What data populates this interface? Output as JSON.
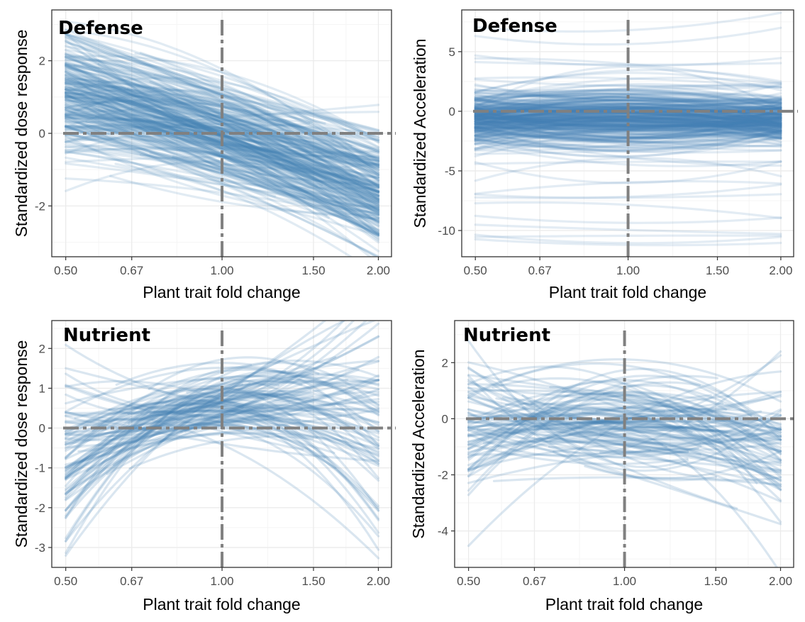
{
  "colors": {
    "curve": "#4682b4",
    "reference": "#808080",
    "grid_major": "#ebebeb",
    "grid_minor": "#f5f5f5",
    "frame": "#333333"
  },
  "chart_data": [
    {
      "type": "line",
      "panel_label": "Defense",
      "xlabel": "Plant trait fold change",
      "ylabel": "Standardized dose response",
      "x_scale": "log2",
      "x_ticks": [
        0.5,
        0.67,
        1.0,
        1.5,
        2.0
      ],
      "x_tick_labels": [
        "0.50",
        "0.67",
        "1.00",
        "1.50",
        "2.00"
      ],
      "xlim": [
        0.47,
        2.12
      ],
      "ylim": [
        -3.4,
        3.4
      ],
      "y_ticks": [
        -2,
        0,
        2
      ],
      "y_tick_labels": [
        "-2",
        "0",
        "2"
      ],
      "reference_lines": {
        "x": 1.0,
        "y": 0
      },
      "grid": true,
      "series_summary": {
        "count": 260,
        "description": "many standardized dose-response curves, mostly declining from about 1.5 at 0.50 to about -1.8 at 2.00",
        "start_mean": 1.1,
        "start_sd": 0.9,
        "end_mean": -1.6,
        "end_sd": 0.85,
        "mid_mean": 0.2,
        "mid_sd": 0.35
      }
    },
    {
      "type": "line",
      "panel_label": "Defense",
      "xlabel": "Plant trait fold change",
      "ylabel": "Standardized Acceleration",
      "x_scale": "log2",
      "x_ticks": [
        0.5,
        0.67,
        1.0,
        1.5,
        2.0
      ],
      "x_tick_labels": [
        "0.50",
        "0.67",
        "1.00",
        "1.50",
        "2.00"
      ],
      "xlim": [
        0.47,
        2.12
      ],
      "ylim": [
        -12.2,
        8.5
      ],
      "y_ticks": [
        -10,
        -5,
        0,
        5
      ],
      "y_tick_labels": [
        "-10",
        "-5",
        "0",
        "5"
      ],
      "reference_lines": {
        "x": 1.0,
        "y": 0
      },
      "grid": true,
      "series_summary": {
        "count": 300,
        "description": "dense band of acceleration curves centred near -0.7, with sparse outliers between -11 and 7.5",
        "band_mean": -0.7,
        "band_sd": 1.1,
        "outlier_levels": [
          7.2,
          4.0,
          2.8,
          -4.5,
          -5.5,
          -6.8,
          -8.3,
          -9.7,
          -10.8
        ]
      }
    },
    {
      "type": "line",
      "panel_label": "Nutrient",
      "xlabel": "Plant trait fold change",
      "ylabel": "Standardized dose response",
      "x_scale": "log2",
      "x_ticks": [
        0.5,
        0.67,
        1.0,
        1.5,
        2.0
      ],
      "x_tick_labels": [
        "0.50",
        "0.67",
        "1.00",
        "1.50",
        "2.00"
      ],
      "xlim": [
        0.47,
        2.12
      ],
      "ylim": [
        -3.5,
        2.7
      ],
      "y_ticks": [
        -3,
        -2,
        -1,
        0,
        1,
        2
      ],
      "y_tick_labels": [
        "-3",
        "-2",
        "-1",
        "0",
        "1",
        "2"
      ],
      "reference_lines": {
        "x": 1.0,
        "y": 0
      },
      "grid": true,
      "series_summary": {
        "count": 110,
        "description": "nutrient dose-response curves, mostly rising from about -1 at 0.50 to about 0.7 near 1.00, then diverging",
        "start_mean": -0.7,
        "start_sd": 1.1,
        "mid_mean": 0.55,
        "mid_sd": 0.45,
        "end_mean": 0.2,
        "end_sd": 1.4
      }
    },
    {
      "type": "line",
      "panel_label": "Nutrient",
      "xlabel": "Plant trait fold change",
      "ylabel": "Standardized Acceleration",
      "x_scale": "log2",
      "x_ticks": [
        0.5,
        0.67,
        1.0,
        1.5,
        2.0
      ],
      "x_tick_labels": [
        "0.50",
        "0.67",
        "1.00",
        "1.50",
        "2.00"
      ],
      "xlim": [
        0.47,
        2.12
      ],
      "ylim": [
        -5.3,
        3.5
      ],
      "y_ticks": [
        -4,
        -2,
        0,
        2
      ],
      "y_tick_labels": [
        "-4",
        "-2",
        "0",
        "2"
      ],
      "reference_lines": {
        "x": 1.0,
        "y": 0
      },
      "grid": true,
      "series_summary": {
        "count": 110,
        "description": "nutrient acceleration curves, generally drifting from about 0 at 0.50 to about -1 at 2.00",
        "start_mean": -0.4,
        "start_sd": 1.35,
        "mid_mean": -0.2,
        "mid_sd": 0.9,
        "end_mean": -1.0,
        "end_sd": 1.3
      }
    }
  ]
}
